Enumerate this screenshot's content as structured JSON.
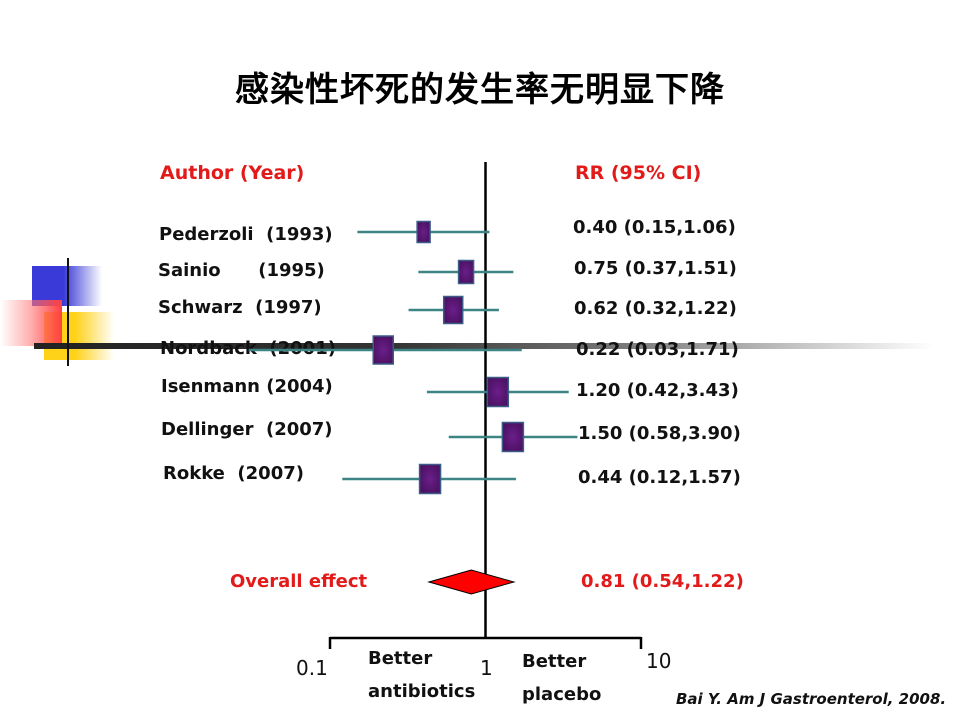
{
  "slide": {
    "title": "感染性坏死的发生率无明显下降"
  },
  "citation": "Bai Y. Am J Gastroenterol, 2008.",
  "chart_data": {
    "type": "forest",
    "xscale": "log",
    "xlim": [
      0.1,
      10
    ],
    "reference_line": 1,
    "author_header": "Author (Year)",
    "rr_header": "RR (95% CI)",
    "studies": [
      {
        "label": "Pederzoli  (1993)",
        "rr": 0.4,
        "lo": 0.15,
        "hi": 1.06,
        "text": "0.40 (0.15,1.06)"
      },
      {
        "label": "Sainio      (1995)",
        "rr": 0.75,
        "lo": 0.37,
        "hi": 1.51,
        "text": "0.75 (0.37,1.51)"
      },
      {
        "label": "Schwarz  (1997)",
        "rr": 0.62,
        "lo": 0.32,
        "hi": 1.22,
        "text": "0.62 (0.32,1.22)"
      },
      {
        "label": "Nordback  (2001)",
        "rr": 0.22,
        "lo": 0.03,
        "hi": 1.71,
        "text": "0.22 (0.03,1.71)"
      },
      {
        "label": "Isenmann (2004)",
        "rr": 1.2,
        "lo": 0.42,
        "hi": 3.43,
        "text": "1.20 (0.42,3.43)"
      },
      {
        "label": "Dellinger  (2007)",
        "rr": 1.5,
        "lo": 0.58,
        "hi": 3.9,
        "text": "1.50 (0.58,3.90)"
      },
      {
        "label": "Rokke  (2007)",
        "rr": 0.44,
        "lo": 0.12,
        "hi": 1.57,
        "text": "0.44 (0.12,1.57)"
      }
    ],
    "overall": {
      "label": "Overall effect",
      "rr": 0.81,
      "lo": 0.54,
      "hi": 1.22,
      "text": "0.81 (0.54,1.22)"
    },
    "axis_ticks": [
      "0.1",
      "1",
      "10"
    ],
    "left_direction": [
      "Better",
      "antibiotics"
    ],
    "right_direction": [
      "Better",
      "placebo"
    ],
    "colors": {
      "header": "#e31a1a",
      "whisker": "#3d8585",
      "box": "#4a1060",
      "box_border": "#3c5c88",
      "diamond": "#ff0000",
      "axis": "#000000"
    }
  }
}
